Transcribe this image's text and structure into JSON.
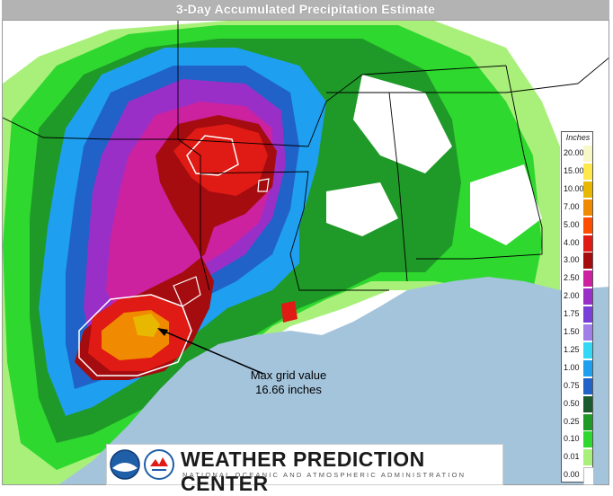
{
  "title": "3-Day Accumulated Precipitation Estimate",
  "annotation": {
    "line1": "Max grid value",
    "line2": "16.66 inches"
  },
  "legend": {
    "title": "Inches",
    "entries": [
      {
        "label": "20.00",
        "color": "#f7f7c8"
      },
      {
        "label": "15.00",
        "color": "#ffe84a"
      },
      {
        "label": "10.00",
        "color": "#e8b800"
      },
      {
        "label": "7.00",
        "color": "#f08a00"
      },
      {
        "label": "5.00",
        "color": "#ff4d00"
      },
      {
        "label": "4.00",
        "color": "#e01a14"
      },
      {
        "label": "3.00",
        "color": "#a40c10"
      },
      {
        "label": "2.50",
        "color": "#cc22a0"
      },
      {
        "label": "2.00",
        "color": "#9a2fc8"
      },
      {
        "label": "1.75",
        "color": "#7a3fd8"
      },
      {
        "label": "1.50",
        "color": "#a07fe8"
      },
      {
        "label": "1.25",
        "color": "#33d8f5"
      },
      {
        "label": "1.00",
        "color": "#1f9ff0"
      },
      {
        "label": "0.75",
        "color": "#2062c8"
      },
      {
        "label": "0.50",
        "color": "#1b5a2e"
      },
      {
        "label": "0.25",
        "color": "#1f9a28"
      },
      {
        "label": "0.10",
        "color": "#2ed82e"
      },
      {
        "label": "0.01",
        "color": "#a8f07a"
      },
      {
        "label": "0.00",
        "color": "#ffffff"
      }
    ]
  },
  "logo": {
    "name": "WEATHER PREDICTION CENTER",
    "subtitle": "NATIONAL OCEANIC AND ATMOSPHERIC ADMINISTRATION"
  },
  "colors": {
    "gulf": "#a4c4dc",
    "land_none": "#ffffff",
    "light_green": "#a8f07a",
    "green": "#2ed82e",
    "dark_green": "#1f9a28",
    "blue": "#1f9ff0",
    "purple": "#9a2fc8",
    "red": "#e01a14",
    "orange": "#f08a00",
    "yellow": "#ffe84a"
  }
}
